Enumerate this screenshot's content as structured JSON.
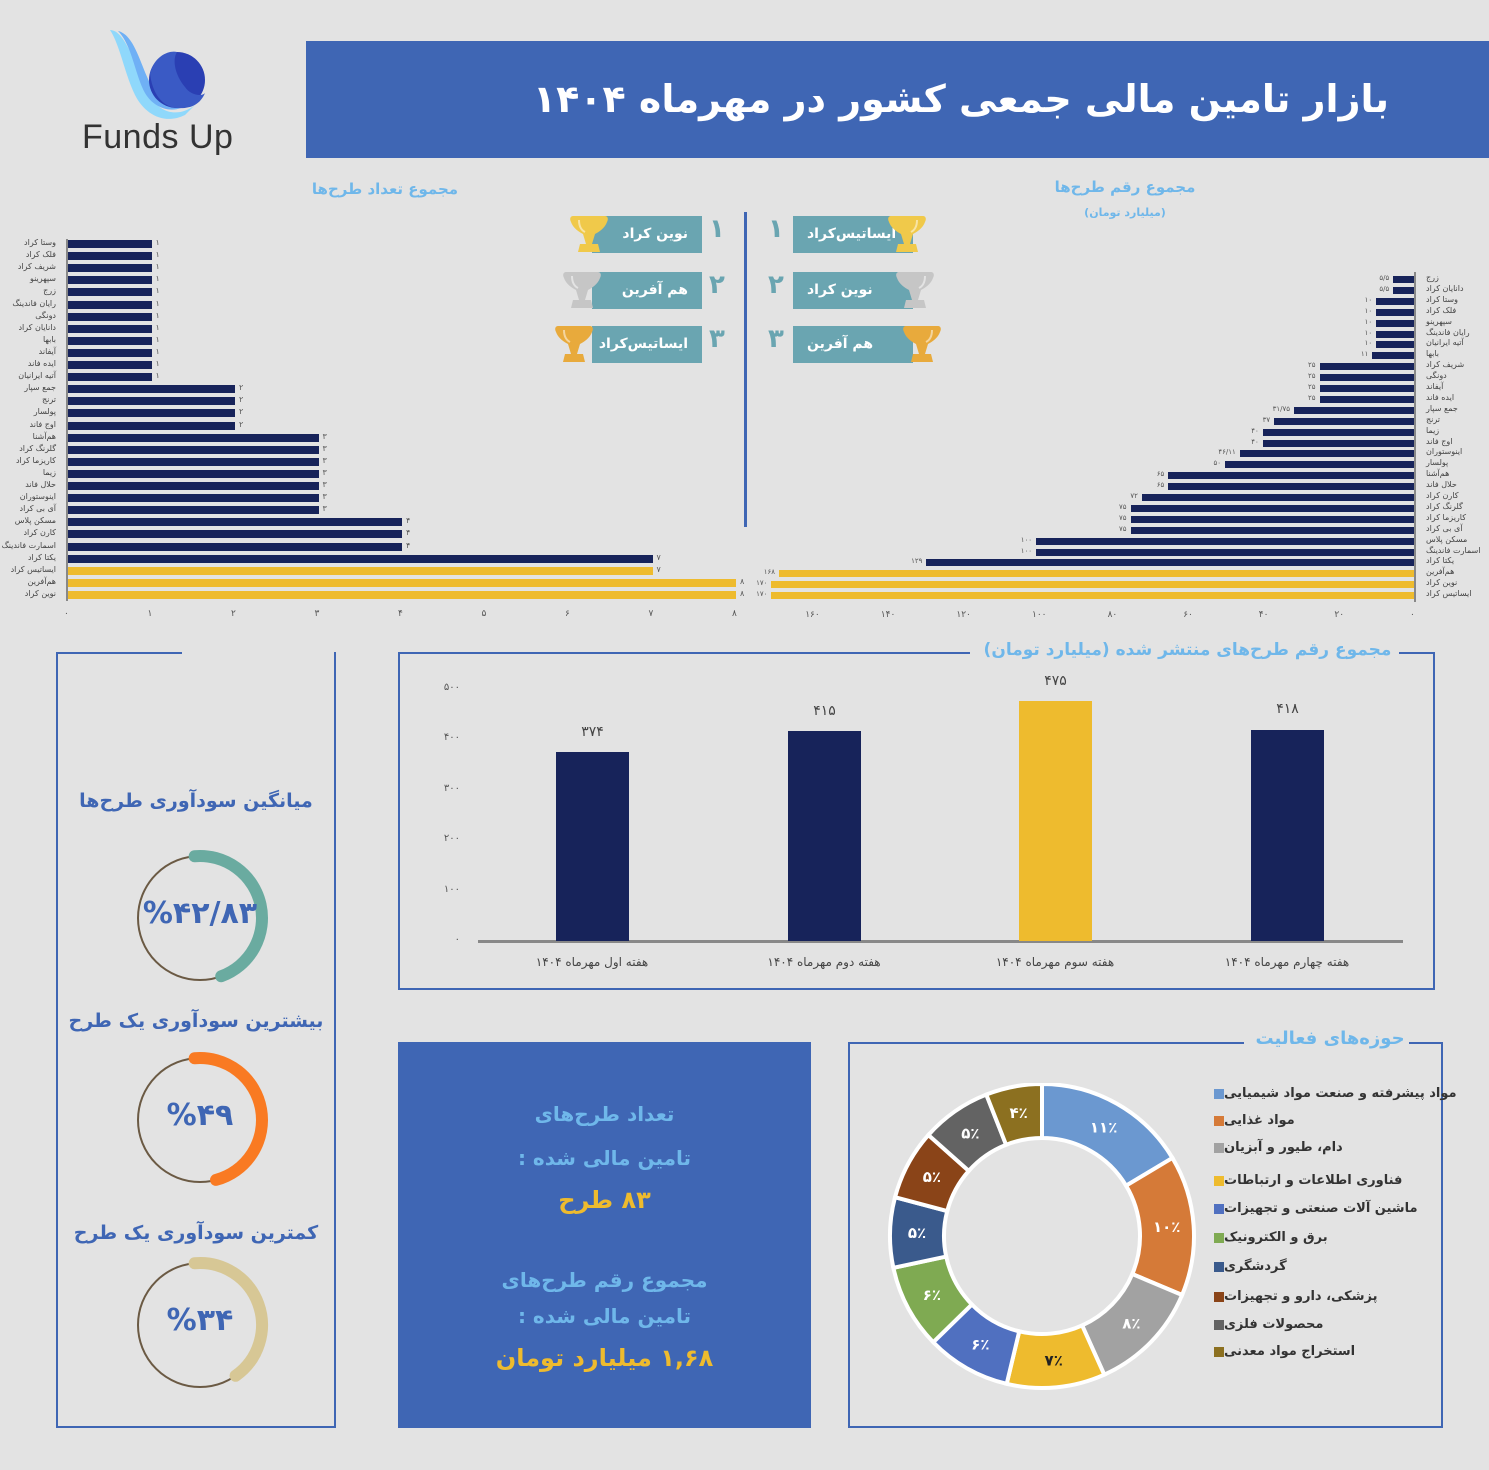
{
  "header": {
    "logo_text": "Funds Up",
    "title": "بازار تامین مالی جمعی کشور در مهرماه ۱۴۰۴"
  },
  "colors": {
    "banner": "#3f66b4",
    "navy": "#17235a",
    "gold": "#eebb2e",
    "teal": "#6aa5b1",
    "light_blue_text": "#6fb7ea"
  },
  "count_chart_title": "مجموع تعداد طرح‌ها",
  "amount_chart_title": "مجموع رقم طرح‌ها",
  "amount_chart_subtitle": "(میلیارد تومان)",
  "rankings": {
    "by_count": [
      {
        "rank": "۱",
        "name": "نوین کراد",
        "trophy": "gold-trophy"
      },
      {
        "rank": "۲",
        "name": "هم آفرین",
        "trophy": "silver-trophy"
      },
      {
        "rank": "۳",
        "name": "ایساتیس‌کراد",
        "trophy": "bronze-trophy"
      }
    ],
    "by_amount": [
      {
        "rank": "۱",
        "name": "ایساتیس‌کراد",
        "trophy": "gold-trophy"
      },
      {
        "rank": "۲",
        "name": "نوین کراد",
        "trophy": "silver-trophy"
      },
      {
        "rank": "۳",
        "name": "هم آفرین",
        "trophy": "bronze-trophy"
      }
    ]
  },
  "gauges": [
    {
      "title": "میانگین سودآوری طرح‌ها",
      "value": "%۴۲/۸۳",
      "color": "#6aaba0"
    },
    {
      "title": "بیشترین سودآوری یک طرح",
      "value": "%۴۹",
      "color": "#f97a22"
    },
    {
      "title": "کمترین سودآوری یک طرح",
      "value": "%۳۴",
      "color": "#d7c795"
    }
  ],
  "summary": {
    "count_label_1": "تعداد طرح‌های",
    "count_label_2": "تامین مالی شده :",
    "count_value": "۸۳ طرح",
    "amount_label_1": "مجموع رقم طرح‌های",
    "amount_label_2": "تامین مالی شده :",
    "amount_value": "۱,۶۸ میلیارد تومان"
  },
  "weekly_title": "مجموع رقم طرح‌های منتشر شده (میلیارد تومان)",
  "sectors_title": "حوزه‌های فعالیت",
  "chart_data": [
    {
      "type": "bar",
      "orientation": "horizontal",
      "title": "مجموع تعداد طرح‌ها",
      "categories": [
        "وستا کراد",
        "فلک کراد",
        "شریف کراد",
        "سپهرینو",
        "زرج",
        "رایان فاندینگ",
        "دونگی",
        "دانایان کراد",
        "بابها",
        "آیفاند",
        "ایده فاند",
        "آتیه ایرانیان",
        "جمع سپار",
        "ترنج",
        "پولسار",
        "اوج فاند",
        "هم‌آشنا",
        "گلرنگ کراد",
        "کاریزما کراد",
        "زیما",
        "حلال فاند",
        "اینوستوران",
        "آی بی کراد",
        "مسکن پلاس",
        "کارن کراد",
        "اسمارت فاندینگ",
        "یکتا کراد",
        "ایساتیس کراد",
        "هم‌آفرین",
        "نوین کراد"
      ],
      "values": [
        1,
        1,
        1,
        1,
        1,
        1,
        1,
        1,
        1,
        1,
        1,
        1,
        2,
        2,
        2,
        2,
        3,
        3,
        3,
        3,
        3,
        3,
        3,
        4,
        4,
        4,
        7,
        7,
        8,
        8
      ],
      "value_labels": [
        "۱",
        "۱",
        "۱",
        "۱",
        "۱",
        "۱",
        "۱",
        "۱",
        "۱",
        "۱",
        "۱",
        "۱",
        "۲",
        "۲",
        "۲",
        "۲",
        "۳",
        "۳",
        "۳",
        "۳",
        "۳",
        "۳",
        "۳",
        "۴",
        "۴",
        "۴",
        "۷",
        "۷",
        "۸",
        "۸"
      ],
      "highlight": [
        false,
        false,
        false,
        false,
        false,
        false,
        false,
        false,
        false,
        false,
        false,
        false,
        false,
        false,
        false,
        false,
        false,
        false,
        false,
        false,
        false,
        false,
        false,
        false,
        false,
        false,
        false,
        true,
        true,
        true
      ],
      "xticks": [
        "۰",
        "۱",
        "۲",
        "۳",
        "۴",
        "۵",
        "۶",
        "۷",
        "۸"
      ],
      "xlim": [
        0,
        8
      ]
    },
    {
      "type": "bar",
      "orientation": "horizontal",
      "title": "مجموع رقم طرح‌ها",
      "subtitle": "(میلیارد تومان)",
      "categories": [
        "زرج",
        "دانایان کراد",
        "وستا کراد",
        "فلک کراد",
        "سپهرینو",
        "رایان فاندینگ",
        "آتیه ایرانیان",
        "بابها",
        "شریف کراد",
        "دونگی",
        "آیفاند",
        "ایده فاند",
        "جمع سپار",
        "ترنج",
        "زیما",
        "اوج فاند",
        "اینوستوران",
        "پولسار",
        "هم‌آشنا",
        "حلال فاند",
        "کارن کراد",
        "گلرنگ کراد",
        "کاریزما کراد",
        "آی بی کراد",
        "مسکن پلاس",
        "اسمارت فاندینگ",
        "یکتا کراد",
        "هم‌آفرین",
        "نوین کراد",
        "ایساتیس کراد"
      ],
      "values": [
        5.5,
        5.5,
        10,
        10,
        10,
        10,
        10,
        11,
        25,
        25,
        25,
        25,
        31.75,
        37,
        40,
        40,
        46.11,
        50,
        65,
        65,
        72,
        75,
        75,
        75,
        100,
        100,
        129,
        168,
        170,
        170
      ],
      "value_labels": [
        "۵/۵",
        "۵/۵",
        "۱۰",
        "۱۰",
        "۱۰",
        "۱۰",
        "۱۰",
        "۱۱",
        "۲۵",
        "۲۵",
        "۲۵",
        "۲۵",
        "۳۱/۷۵",
        "۳۷",
        "۴۰",
        "۴۰",
        "۴۶/۱۱",
        "۵۰",
        "۶۵",
        "۶۵",
        "۷۲",
        "۷۵",
        "۷۵",
        "۷۵",
        "۱۰۰",
        "۱۰۰",
        "۱۲۹",
        "۱۶۸",
        "۱۷۰",
        "۱۷۰"
      ],
      "highlight": [
        false,
        false,
        false,
        false,
        false,
        false,
        false,
        false,
        false,
        false,
        false,
        false,
        false,
        false,
        false,
        false,
        false,
        false,
        false,
        false,
        false,
        false,
        false,
        false,
        false,
        false,
        false,
        true,
        true,
        true
      ],
      "xticks": [
        "۰",
        "۲۰",
        "۴۰",
        "۶۰",
        "۸۰",
        "۱۰۰",
        "۱۲۰",
        "۱۴۰",
        "۱۶۰"
      ],
      "xlim": [
        0,
        170
      ],
      "direction": "right-to-left"
    },
    {
      "type": "bar",
      "title": "مجموع رقم طرح‌های منتشر شده (میلیارد تومان)",
      "categories": [
        "هفته اول مهرماه ۱۴۰۴",
        "هفته دوم مهرماه ۱۴۰۴",
        "هفته سوم مهرماه ۱۴۰۴",
        "هفته چهارم مهرماه ۱۴۰۴"
      ],
      "values": [
        374,
        415,
        475,
        418
      ],
      "value_labels": [
        "۳۷۴",
        "۴۱۵",
        "۴۷۵",
        "۴۱۸"
      ],
      "highlight": [
        false,
        false,
        true,
        false
      ],
      "yticks": [
        "۰",
        "۱۰۰",
        "۲۰۰",
        "۳۰۰",
        "۴۰۰",
        "۵۰۰"
      ],
      "ylim": [
        0,
        500
      ]
    },
    {
      "type": "pie",
      "donut": true,
      "title": "حوزه‌های فعالیت",
      "categories": [
        "مواد پیشرفته و صنعت مواد شیمیایی",
        "مواد غذایی",
        "دام، طیور و آبزیان",
        "فناوری اطلاعات و ارتباطات",
        "ماشین آلات صنعتی و تجهیزات",
        "برق و الکترونیک",
        "گردشگری",
        "پزشکی، دارو و تجهیزات",
        "محصولات فلزی",
        "استخراج مواد معدنی"
      ],
      "values": [
        11,
        10,
        8,
        7,
        6,
        6,
        5,
        5,
        5,
        4
      ],
      "value_labels": [
        "۱۱٪",
        "۱۰٪",
        "۸٪",
        "۷٪",
        "۶٪",
        "۶٪",
        "۵٪",
        "۵٪",
        "۵٪",
        "۴٪"
      ],
      "colors": [
        "#6b98d0",
        "#d57a38",
        "#a2a2a2",
        "#eebb2e",
        "#5070c0",
        "#7faa52",
        "#3a5a8c",
        "#8a4418",
        "#636363",
        "#8c7020"
      ],
      "legend_position": "right"
    }
  ]
}
